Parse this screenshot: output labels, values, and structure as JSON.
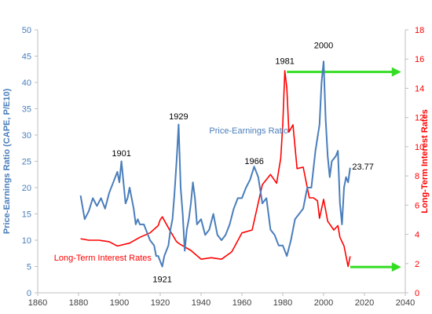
{
  "chart_data": {
    "type": "line",
    "title": "",
    "xlabel": "",
    "ylabel": "Price-Earnings Ratio (CAPE, P/E10)",
    "y2label": "Long-Term Interest Rates",
    "xlim": [
      1860,
      2040
    ],
    "ylim": [
      0,
      50
    ],
    "y2lim": [
      0,
      18
    ],
    "xticks": [
      "1860",
      "1880",
      "1900",
      "1920",
      "1940",
      "1960",
      "1980",
      "2000",
      "2020",
      "2040"
    ],
    "yticks": [
      "0",
      "5",
      "10",
      "15",
      "20",
      "25",
      "30",
      "35",
      "40",
      "45",
      "50"
    ],
    "y2ticks": [
      "0",
      "2",
      "4",
      "6",
      "8",
      "10",
      "12",
      "14",
      "16",
      "18"
    ],
    "grid": false,
    "colors": {
      "pe": "#4a7ebb",
      "rates": "#ff0000",
      "arrow": "#33dd22",
      "axis": "#bfbfbf"
    },
    "series": [
      {
        "name": "Price-Earnings Ratio",
        "axis": "left",
        "x": [
          1881,
          1883,
          1885,
          1887,
          1889,
          1891,
          1893,
          1895,
          1897,
          1899,
          1900,
          1901,
          1902,
          1903,
          1904,
          1905,
          1907,
          1908,
          1909,
          1910,
          1912,
          1914,
          1915,
          1917,
          1918,
          1919,
          1920,
          1921,
          1922,
          1923,
          1924,
          1925,
          1926,
          1927,
          1928,
          1929,
          1930,
          1931,
          1932,
          1933,
          1934,
          1935,
          1936,
          1937,
          1938,
          1940,
          1942,
          1944,
          1946,
          1948,
          1950,
          1952,
          1954,
          1956,
          1958,
          1960,
          1962,
          1964,
          1966,
          1968,
          1970,
          1972,
          1974,
          1976,
          1978,
          1980,
          1982,
          1984,
          1986,
          1988,
          1990,
          1992,
          1994,
          1996,
          1998,
          1999,
          2000,
          2001,
          2002,
          2003,
          2004,
          2006,
          2007,
          2008,
          2009,
          2010,
          2011,
          2012,
          2013
        ],
        "values": [
          18.5,
          14,
          15.5,
          18,
          16.5,
          18,
          16,
          19,
          21,
          23,
          21,
          25,
          21,
          17,
          18,
          20,
          16,
          13,
          14,
          13,
          13,
          11,
          10,
          9,
          7,
          7,
          6,
          5,
          7,
          8,
          9,
          12,
          14,
          19,
          25,
          32,
          20,
          15,
          8,
          12,
          14,
          17,
          21,
          18,
          13,
          14,
          11,
          12,
          15,
          11,
          10,
          11,
          13,
          16,
          18,
          18,
          20,
          21.5,
          24,
          22,
          17,
          18,
          12,
          11,
          9,
          9,
          7,
          10,
          14,
          15,
          16,
          20,
          20,
          27,
          32,
          40,
          44,
          33,
          26,
          22,
          25,
          26,
          27,
          17,
          13,
          20,
          22,
          21,
          23.77
        ]
      },
      {
        "name": "Long-Term Interest Rates",
        "axis": "right",
        "x": [
          1881,
          1885,
          1890,
          1895,
          1899,
          1905,
          1910,
          1915,
          1919,
          1920,
          1921,
          1925,
          1928,
          1930,
          1935,
          1940,
          1945,
          1950,
          1955,
          1960,
          1965,
          1970,
          1974,
          1977,
          1979,
          1980,
          1981,
          1982,
          1983,
          1985,
          1987,
          1990,
          1993,
          1995,
          1997,
          1998,
          2000,
          2002,
          2005,
          2007,
          2008,
          2010,
          2011,
          2012,
          2013
        ],
        "values": [
          3.7,
          3.6,
          3.6,
          3.5,
          3.2,
          3.4,
          3.8,
          4.1,
          4.6,
          5,
          5.2,
          4.2,
          3.5,
          3.3,
          2.9,
          2.3,
          2.4,
          2.3,
          2.8,
          4.1,
          4.3,
          7.4,
          8.1,
          7.5,
          9.2,
          11.5,
          15.2,
          14,
          11,
          11.5,
          8.5,
          8.6,
          6.5,
          6.5,
          6.3,
          5.1,
          6.4,
          4.9,
          4.3,
          4.6,
          3.8,
          3.2,
          2.5,
          1.8,
          2.5
        ]
      }
    ],
    "annotations": [
      {
        "text": "1901",
        "x": 1901,
        "y": 26
      },
      {
        "text": "1929",
        "x": 1929,
        "y": 33
      },
      {
        "text": "1921",
        "x": 1921,
        "y": 2
      },
      {
        "text": "1966",
        "x": 1966,
        "y": 24.5
      },
      {
        "text": "1981",
        "x": 1981,
        "y": 43.5
      },
      {
        "text": "2000",
        "x": 2000,
        "y": 46.5
      },
      {
        "text": "23.77",
        "x": 2014,
        "y": 23.4
      }
    ],
    "series_labels": [
      {
        "text": "Price-Earnings Ratio",
        "series": "Price-Earnings Ratio",
        "x": 1944,
        "y": 30.3
      },
      {
        "text": "Long-Term Interest Rates",
        "series": "Long-Term Interest Rates",
        "x": 1868,
        "y": 6.1
      }
    ],
    "arrows": [
      {
        "from_x": 1982,
        "to_x": 2038,
        "y": 42
      },
      {
        "from_x": 2013,
        "to_x": 2038,
        "y": 4.9
      }
    ]
  }
}
